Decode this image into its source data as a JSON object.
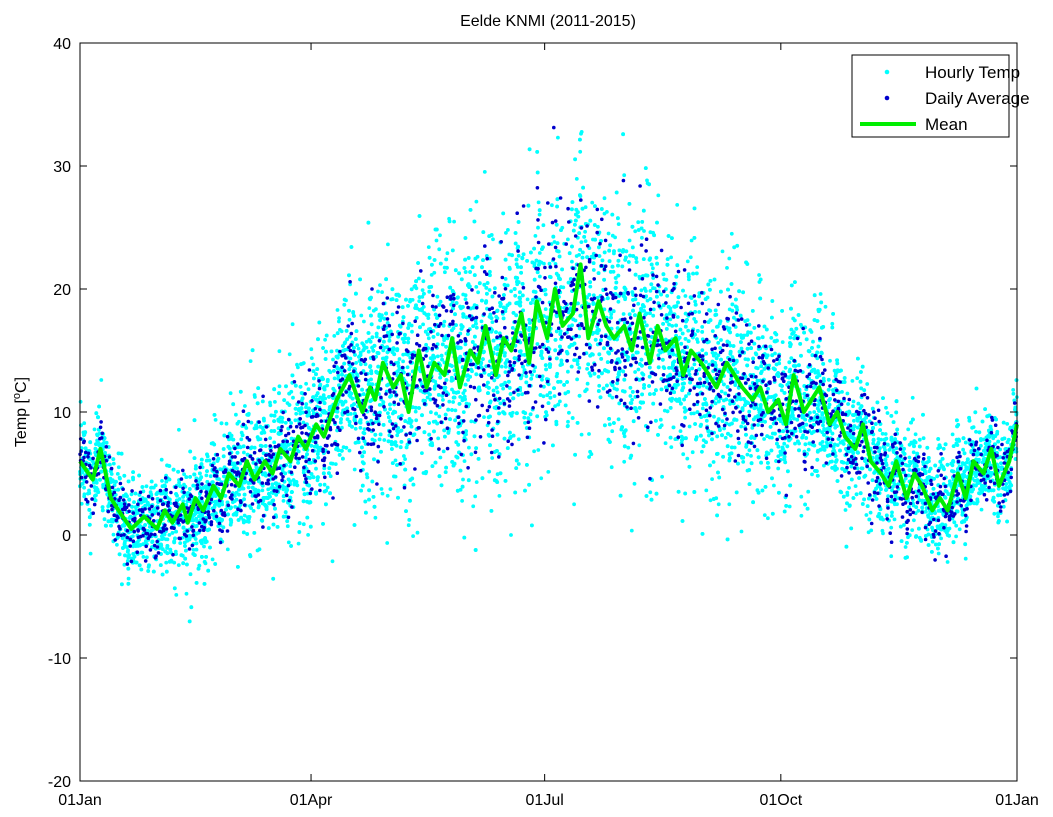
{
  "chart_data": {
    "type": "scatter",
    "title": "Eelde KNMI (2011-2015)",
    "ylabel_prefix": "Temp [",
    "ylabel_sup": "o",
    "ylabel_suffix": "C]",
    "xlabel": "",
    "xlim": [
      0,
      365
    ],
    "ylim": [
      -20,
      40
    ],
    "x_ticks": [
      {
        "value": 0,
        "label": "01Jan"
      },
      {
        "value": 90,
        "label": "01Apr"
      },
      {
        "value": 181,
        "label": "01Jul"
      },
      {
        "value": 273,
        "label": "01Oct"
      },
      {
        "value": 365,
        "label": "01Jan"
      }
    ],
    "y_ticks": [
      {
        "value": -20,
        "label": "-20"
      },
      {
        "value": -10,
        "label": "-10"
      },
      {
        "value": 0,
        "label": "0"
      },
      {
        "value": 10,
        "label": "10"
      },
      {
        "value": 20,
        "label": "20"
      },
      {
        "value": 30,
        "label": "30"
      },
      {
        "value": 40,
        "label": "40"
      }
    ],
    "grid": false,
    "legend_position": "top-right",
    "series": [
      {
        "name": "Hourly Temp",
        "marker": "dot",
        "color": "#00FFFF"
      },
      {
        "name": "Daily Average",
        "marker": "dot",
        "color": "#0000CC"
      },
      {
        "name": "Mean",
        "marker": "line",
        "color": "#00EE00",
        "x": [
          0,
          5,
          8,
          12,
          15,
          20,
          25,
          30,
          33,
          36,
          40,
          42,
          45,
          48,
          52,
          55,
          58,
          62,
          65,
          68,
          72,
          75,
          78,
          82,
          85,
          88,
          92,
          95,
          100,
          105,
          110,
          113,
          115,
          118,
          122,
          125,
          128,
          132,
          135,
          138,
          142,
          145,
          148,
          152,
          155,
          158,
          162,
          165,
          168,
          172,
          175,
          178,
          182,
          185,
          188,
          192,
          195,
          198,
          202,
          205,
          208,
          212,
          215,
          218,
          222,
          225,
          228,
          232,
          235,
          238,
          242,
          245,
          248,
          252,
          255,
          258,
          262,
          265,
          268,
          272,
          275,
          278,
          282,
          285,
          288,
          292,
          295,
          298,
          302,
          305,
          308,
          312,
          315,
          318,
          322,
          325,
          328,
          332,
          335,
          338,
          342,
          345,
          348,
          352,
          355,
          358,
          362,
          365
        ],
        "y": [
          6,
          4.5,
          7,
          3,
          2,
          0.5,
          1.5,
          0.5,
          2,
          1,
          2.5,
          1,
          3,
          2,
          4,
          3,
          5,
          4,
          6,
          4.5,
          6,
          5,
          7,
          6,
          8,
          7,
          9,
          8,
          11,
          13,
          10,
          12,
          11,
          14,
          12,
          13,
          10,
          15,
          12,
          14,
          13,
          16,
          12,
          15,
          14,
          17,
          13,
          16,
          15,
          18,
          14,
          19,
          16,
          20,
          17,
          18,
          22,
          16,
          19,
          17,
          16,
          17,
          15,
          18,
          14,
          17,
          15,
          16,
          13,
          15,
          14,
          13,
          12,
          14,
          13,
          12,
          11,
          12,
          10,
          11,
          9,
          13,
          10,
          11,
          12,
          9,
          10,
          8,
          7,
          9,
          6,
          5,
          4,
          6,
          3,
          5,
          4,
          2,
          3,
          2,
          5,
          3,
          6,
          5,
          7,
          4,
          6,
          9
        ]
      }
    ]
  }
}
